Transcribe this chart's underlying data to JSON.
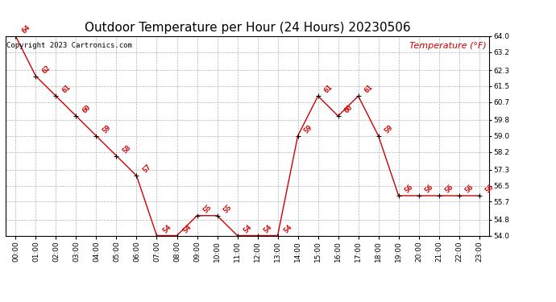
{
  "title": "Outdoor Temperature per Hour (24 Hours) 20230506",
  "copyright_text": "Copyright 2023 Cartronics.com",
  "legend_label": "Temperature (°F)",
  "hours": [
    "00:00",
    "01:00",
    "02:00",
    "03:00",
    "04:00",
    "05:00",
    "06:00",
    "07:00",
    "08:00",
    "09:00",
    "10:00",
    "11:00",
    "12:00",
    "13:00",
    "14:00",
    "15:00",
    "16:00",
    "17:00",
    "18:00",
    "19:00",
    "20:00",
    "21:00",
    "22:00",
    "23:00"
  ],
  "temperatures": [
    64,
    62,
    61,
    60,
    59,
    58,
    57,
    54,
    54,
    55,
    55,
    54,
    54,
    54,
    59,
    61,
    60,
    61,
    59,
    56,
    56,
    56,
    56,
    56
  ],
  "line_color": "#cc0000",
  "marker_color": "#000000",
  "label_color": "#cc0000",
  "grid_color": "#aaaaaa",
  "background_color": "#ffffff",
  "ylim_min": 54.0,
  "ylim_max": 64.0,
  "yticks": [
    54.0,
    54.8,
    55.7,
    56.5,
    57.3,
    58.2,
    59.0,
    59.8,
    60.7,
    61.5,
    62.3,
    63.2,
    64.0
  ],
  "title_fontsize": 11,
  "label_fontsize": 6.5,
  "axis_tick_fontsize": 6.5,
  "copyright_fontsize": 6.5,
  "legend_fontsize": 8
}
